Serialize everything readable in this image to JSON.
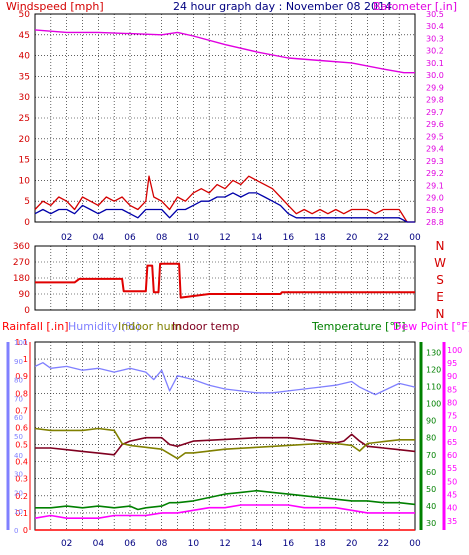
{
  "header": {
    "wind_label": "Windspeed [mph]",
    "title": "24 hour graph day : November 08 2014",
    "baro_label": "Barometer [.in]"
  },
  "colors": {
    "wind": "#d40000",
    "wind_avg": "#0000aa",
    "baro": "#e000e0",
    "dir": "#e00000",
    "rain": "#ff0000",
    "humidity": "#8080ff",
    "indoor_hum": "#808000",
    "indoor_temp": "#800020",
    "temperature": "#008000",
    "dew": "#ff00ff",
    "grid": "#000000"
  },
  "chart_data": [
    {
      "type": "line",
      "id": "wind_baro",
      "x_ticks": [
        "02",
        "04",
        "06",
        "08",
        "10",
        "12",
        "14",
        "16",
        "18",
        "20",
        "22",
        "00"
      ],
      "y_left_label": "Windspeed [mph]",
      "y_left_ticks": [
        0,
        5,
        10,
        15,
        20,
        25,
        30,
        35,
        40,
        45,
        50
      ],
      "ylim_left": [
        0,
        50
      ],
      "y_right_label": "Barometer [.in]",
      "y_right_ticks": [
        "28.8",
        "28.9",
        "29.0",
        "29.1",
        "29.2",
        "29.3",
        "29.4",
        "29.5",
        "29.6",
        "29.7",
        "29.8",
        "29.9",
        "30.0",
        "30.1",
        "30.2",
        "30.3",
        "30.4",
        "30.5"
      ],
      "ylim_right": [
        28.8,
        30.5
      ],
      "series": [
        {
          "name": "Barometer",
          "axis": "right",
          "x": [
            0,
            2,
            4,
            6,
            8,
            9,
            10,
            12,
            14,
            16,
            18,
            20,
            22,
            23.3,
            24
          ],
          "values": [
            30.37,
            30.35,
            30.35,
            30.34,
            30.33,
            30.35,
            30.32,
            30.25,
            30.19,
            30.14,
            30.12,
            30.1,
            30.05,
            30.02,
            30.02
          ]
        },
        {
          "name": "Wind gust",
          "axis": "left",
          "x": [
            0,
            0.5,
            1,
            1.5,
            2,
            2.5,
            3,
            3.5,
            4,
            4.5,
            5,
            5.5,
            6,
            6.5,
            7,
            7.2,
            7.5,
            8,
            8.5,
            9,
            9.5,
            10,
            10.5,
            11,
            11.5,
            12,
            12.5,
            13,
            13.5,
            14,
            14.5,
            15,
            15.5,
            16,
            16.5,
            17,
            17.5,
            18,
            18.5,
            19,
            19.5,
            20,
            20.5,
            21,
            21.5,
            22,
            22.5,
            23,
            23.5,
            24
          ],
          "values": [
            3,
            5,
            4,
            6,
            5,
            3,
            6,
            5,
            4,
            6,
            5,
            6,
            4,
            3,
            5,
            11,
            6,
            5,
            3,
            6,
            5,
            7,
            8,
            7,
            9,
            8,
            10,
            9,
            11,
            10,
            9,
            8,
            6,
            4,
            2,
            3,
            2,
            3,
            2,
            3,
            2,
            3,
            3,
            3,
            2,
            3,
            3,
            3,
            0,
            0
          ]
        },
        {
          "name": "Wind average",
          "axis": "left",
          "x": [
            0,
            0.5,
            1,
            1.5,
            2,
            2.5,
            3,
            3.5,
            4,
            4.5,
            5,
            5.5,
            6,
            6.5,
            7,
            7.5,
            8,
            8.5,
            9,
            9.5,
            10,
            10.5,
            11,
            11.5,
            12,
            12.5,
            13,
            13.5,
            14,
            14.5,
            15,
            15.5,
            16,
            16.5,
            17,
            17.5,
            18,
            18.5,
            19,
            19.5,
            20,
            20.5,
            21,
            21.5,
            22,
            22.5,
            23,
            23.5,
            24
          ],
          "values": [
            2,
            3,
            2,
            3,
            3,
            2,
            4,
            3,
            2,
            3,
            3,
            3,
            2,
            1,
            3,
            3,
            3,
            1,
            3,
            3,
            4,
            5,
            5,
            6,
            6,
            7,
            6,
            7,
            7,
            6,
            5,
            4,
            2,
            1,
            1,
            1,
            1,
            1,
            1,
            1,
            1,
            1,
            1,
            1,
            1,
            1,
            1,
            0,
            0
          ]
        }
      ]
    },
    {
      "type": "line",
      "id": "wind_direction",
      "y_ticks": [
        0,
        90,
        180,
        270,
        360
      ],
      "ylim": [
        0,
        360
      ],
      "compass_labels": [
        "N",
        "W",
        "S",
        "E",
        "N"
      ],
      "series": [
        {
          "name": "Wind direction",
          "x": [
            0,
            2.5,
            2.8,
            5.5,
            5.6,
            7.0,
            7.1,
            7.4,
            7.5,
            7.8,
            7.9,
            9.1,
            9.2,
            11,
            13,
            15.5,
            15.6,
            24
          ],
          "values": [
            155,
            155,
            175,
            175,
            105,
            105,
            250,
            250,
            100,
            100,
            260,
            260,
            70,
            90,
            90,
            90,
            100,
            100
          ]
        }
      ]
    },
    {
      "type": "line",
      "id": "temperature_humidity",
      "y_left_label": "Rainfall [.in]",
      "y_left_ticks": [
        "0",
        "0.1",
        "0.2",
        "0.3",
        "0.4",
        "0.5",
        "0.6",
        "0.7",
        "0.8",
        "0.9",
        "1",
        "1.1"
      ],
      "ylim_left": [
        0,
        1.1
      ],
      "y_hum_ticks": [
        0,
        10,
        20,
        30,
        40,
        50,
        60,
        70,
        80,
        90,
        100
      ],
      "ylim_hum": [
        0,
        100
      ],
      "y_temp_label": "Temperature [°F]",
      "y_temp_ticks": [
        30,
        40,
        50,
        60,
        70,
        80,
        90,
        100,
        110,
        120,
        130
      ],
      "ylim_temp": [
        26,
        136
      ],
      "y_dew_label": "Dew Point [°F]",
      "y_dew_ticks": [
        35,
        40,
        45,
        50,
        55,
        60,
        65,
        70,
        75,
        80,
        85,
        90,
        95,
        100
      ],
      "ylim_dew": [
        31.5,
        103
      ],
      "legend_labels": [
        "Humidity (%)",
        "Indoor hum",
        "Indoor temp"
      ],
      "series": [
        {
          "name": "Humidity (%)",
          "axis": "hum",
          "x": [
            0,
            0.5,
            1,
            2,
            3,
            4,
            5,
            6,
            7,
            7.5,
            8,
            8.5,
            9,
            10,
            11,
            12,
            13,
            14,
            15,
            16,
            17,
            18,
            19,
            20,
            20.5,
            21,
            21.5,
            22,
            23,
            24
          ],
          "values": [
            87,
            89,
            86,
            87,
            85,
            86,
            84,
            86,
            84,
            80,
            85,
            74,
            82,
            80,
            77,
            75,
            74,
            73,
            73,
            74,
            75,
            76,
            77,
            79,
            76,
            74,
            72,
            74,
            78,
            76
          ]
        },
        {
          "name": "Indoor temp",
          "axis": "temp",
          "x": [
            0,
            1,
            2,
            3,
            4,
            5,
            5.5,
            6,
            7,
            8,
            8.5,
            9,
            10,
            12,
            14,
            16,
            18,
            19,
            19.5,
            20,
            20.5,
            21,
            22,
            23,
            24
          ],
          "values": [
            74,
            74,
            73,
            72,
            71,
            70,
            76,
            78,
            80,
            80,
            76,
            75,
            78,
            79,
            80,
            80,
            78,
            77,
            78,
            82,
            78,
            75,
            74,
            73,
            72
          ]
        },
        {
          "name": "Indoor hum",
          "axis": "hum",
          "x": [
            0,
            1,
            2,
            3,
            4,
            5,
            5.5,
            6,
            7,
            8,
            9,
            9.5,
            10,
            12,
            14,
            16,
            18,
            19,
            20,
            20.5,
            21,
            22,
            23,
            24
          ],
          "values": [
            54,
            53,
            53,
            53,
            54,
            53,
            46,
            45,
            44,
            43,
            38,
            41,
            41,
            43,
            44,
            45,
            46,
            46,
            45,
            42,
            46,
            47,
            48,
            48
          ]
        },
        {
          "name": "Temperature",
          "axis": "temp",
          "x": [
            0,
            1,
            2,
            3,
            4,
            5,
            6,
            6.5,
            7,
            8,
            8.5,
            9,
            10,
            11,
            12,
            13,
            14,
            15,
            16,
            17,
            18,
            19,
            20,
            21,
            22,
            23,
            24
          ],
          "values": [
            39,
            39,
            40,
            39,
            40,
            39,
            40,
            38,
            39,
            40,
            42,
            42,
            43,
            45,
            47,
            48,
            49,
            48,
            47,
            46,
            45,
            44,
            43,
            43,
            42,
            42,
            41
          ]
        },
        {
          "name": "Dew Point",
          "axis": "dew",
          "x": [
            0,
            1,
            2,
            3,
            4,
            5,
            6,
            7,
            8,
            9,
            10,
            11,
            12,
            13,
            14,
            15,
            16,
            17,
            18,
            19,
            20,
            21,
            22,
            23,
            24
          ],
          "values": [
            36,
            37,
            36,
            36,
            36,
            37,
            37,
            37,
            38,
            38,
            39,
            40,
            40,
            41,
            41,
            41,
            41,
            40,
            40,
            40,
            39,
            38,
            38,
            38,
            38
          ]
        },
        {
          "name": "Rainfall",
          "axis": "left",
          "x": [
            0,
            24
          ],
          "values": [
            0,
            0
          ]
        }
      ]
    }
  ]
}
